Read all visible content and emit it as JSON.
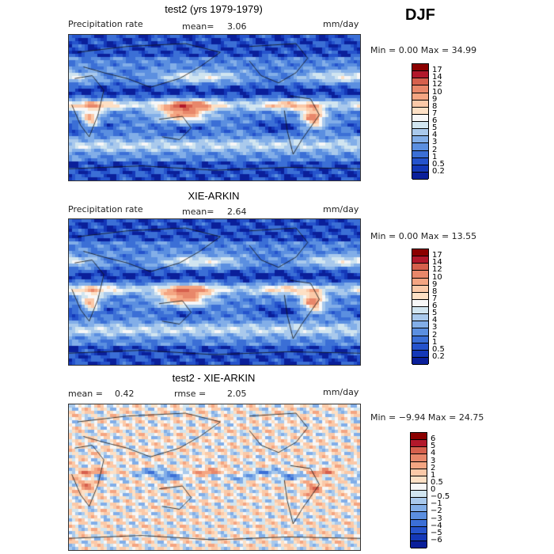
{
  "season": "DJF",
  "colors": {
    "precip_scale": [
      "#8b0000",
      "#b2182b",
      "#d6604d",
      "#e8876a",
      "#f4a582",
      "#fbc9a8",
      "#fde0c5",
      "#f7f7f7",
      "#d1e5f0",
      "#a9c9ec",
      "#82aee8",
      "#5b8fe0",
      "#3b6fd6",
      "#2553cc",
      "#1438b8",
      "#0a1f9a"
    ],
    "diff_scale": [
      "#8b0000",
      "#b2182b",
      "#d6604d",
      "#e8876a",
      "#f4a582",
      "#fbc9a8",
      "#fde0c5",
      "#f7f7f7",
      "#d1e5f0",
      "#a9c9ec",
      "#82aee8",
      "#5b8fe0",
      "#3b6fd6",
      "#2553cc",
      "#1438b8",
      "#0a1f9a"
    ]
  },
  "panels": [
    {
      "title": "test2 (yrs 1979-1979)",
      "left_label": "Precipitation rate",
      "stat1_label": "mean=",
      "stat1_value": "3.06",
      "stat2_label": "",
      "stat2_value": "",
      "units": "mm/day",
      "minmax": "Min =    0.00 Max =   34.99",
      "colorbar_labels": [
        "17",
        "14",
        "12",
        "10",
        "9",
        "8",
        "7",
        "6",
        "5",
        "4",
        "3",
        "2",
        "1",
        "0.5",
        "0.2"
      ],
      "kind": "model"
    },
    {
      "title": "XIE-ARKIN",
      "left_label": "Precipitation rate",
      "stat1_label": "mean=",
      "stat1_value": "2.64",
      "stat2_label": "",
      "stat2_value": "",
      "units": "mm/day",
      "minmax": "Min =    0.00 Max =   13.55",
      "colorbar_labels": [
        "17",
        "14",
        "12",
        "10",
        "9",
        "8",
        "7",
        "6",
        "5",
        "4",
        "3",
        "2",
        "1",
        "0.5",
        "0.2"
      ],
      "kind": "obs"
    },
    {
      "title": "test2 - XIE-ARKIN",
      "left_label": "",
      "stat1_label": "mean =",
      "stat1_value": "0.42",
      "stat2_label": "rmse =",
      "stat2_value": "2.05",
      "units": "mm/day",
      "minmax": "Min =  −9.94 Max =   24.75",
      "colorbar_labels": [
        "6",
        "5",
        "4",
        "3",
        "2",
        "1",
        "0.5",
        "0",
        "−0.5",
        "−1",
        "−2",
        "−3",
        "−4",
        "−5",
        "−6"
      ],
      "kind": "diff"
    }
  ]
}
